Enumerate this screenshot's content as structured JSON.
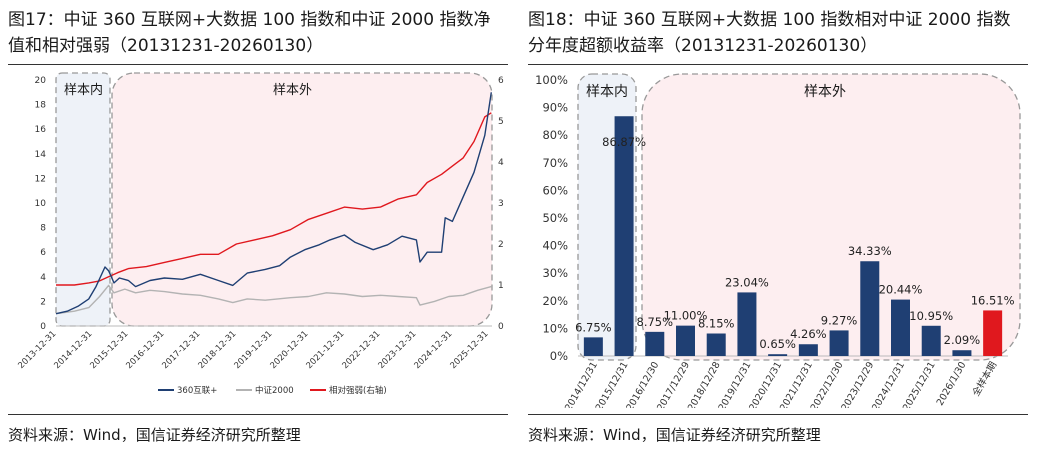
{
  "left": {
    "title_line1": "图17：中证 360 互联网+大数据 100 指数和中证 2000 指数净",
    "title_line2": "值和相对强弱（20131231-20260130）",
    "source": "资料来源：Wind，国信证券经济研究所整理",
    "region_in": "样本内",
    "region_out": "样本外",
    "colors": {
      "series1": "#1f3f73",
      "series2": "#b3b3b3",
      "series3": "#e0181e"
    },
    "chart_data": {
      "type": "line",
      "x_ticks": [
        "2013-12-31",
        "2014-12-31",
        "2015-12-31",
        "2016-12-31",
        "2017-12-31",
        "2018-12-31",
        "2019-12-31",
        "2020-12-31",
        "2021-12-31",
        "2022-12-31",
        "2023-12-31",
        "2024-12-31",
        "2025-12-31"
      ],
      "y_left_ticks": [
        "0",
        "2",
        "4",
        "6",
        "8",
        "10",
        "12",
        "14",
        "16",
        "18",
        "20"
      ],
      "y_right_ticks": [
        "0",
        "1",
        "2",
        "3",
        "4",
        "5",
        "6"
      ],
      "ylim_left": [
        0,
        20
      ],
      "ylim_right": [
        0,
        6
      ],
      "legend": [
        "360互联+",
        "中证2000",
        "相对强弱(右轴)"
      ],
      "series": [
        {
          "name": "360互联+",
          "axis": "left",
          "x": [
            2013.99,
            2014.3,
            2014.6,
            2014.9,
            2015.1,
            2015.35,
            2015.45,
            2015.6,
            2015.75,
            2016.0,
            2016.2,
            2016.6,
            2017.0,
            2017.5,
            2018.0,
            2018.5,
            2018.9,
            2019.3,
            2019.8,
            2020.2,
            2020.5,
            2020.9,
            2021.3,
            2021.6,
            2022.0,
            2022.3,
            2022.8,
            2023.2,
            2023.6,
            2024.0,
            2024.1,
            2024.3,
            2024.7,
            2024.8,
            2025.0,
            2025.3,
            2025.6,
            2025.9,
            2026.08
          ],
          "values": [
            1.0,
            1.2,
            1.6,
            2.2,
            3.2,
            4.8,
            4.5,
            3.5,
            3.9,
            3.7,
            3.2,
            3.7,
            3.9,
            3.8,
            4.2,
            3.7,
            3.3,
            4.3,
            4.6,
            4.9,
            5.6,
            6.2,
            6.6,
            7.0,
            7.4,
            6.8,
            6.2,
            6.6,
            7.3,
            7.0,
            5.2,
            6.0,
            6.0,
            8.8,
            8.5,
            10.5,
            12.5,
            15.5,
            19.0
          ]
        },
        {
          "name": "中证2000",
          "axis": "left",
          "x": [
            2013.99,
            2014.5,
            2014.9,
            2015.2,
            2015.45,
            2015.6,
            2015.9,
            2016.2,
            2016.6,
            2017.0,
            2017.5,
            2018.0,
            2018.5,
            2018.9,
            2019.3,
            2019.8,
            2020.5,
            2021.0,
            2021.5,
            2022.0,
            2022.5,
            2023.0,
            2023.5,
            2024.0,
            2024.1,
            2024.5,
            2024.9,
            2025.3,
            2025.7,
            2026.08
          ],
          "values": [
            1.0,
            1.2,
            1.5,
            2.4,
            3.3,
            2.7,
            3.0,
            2.7,
            2.9,
            2.8,
            2.6,
            2.5,
            2.2,
            1.9,
            2.2,
            2.1,
            2.3,
            2.4,
            2.7,
            2.6,
            2.4,
            2.5,
            2.4,
            2.3,
            1.7,
            2.0,
            2.4,
            2.5,
            2.9,
            3.2
          ]
        },
        {
          "name": "相对强弱(右轴)",
          "axis": "right",
          "x": [
            2013.99,
            2014.5,
            2014.9,
            2015.2,
            2015.45,
            2015.7,
            2016.0,
            2016.5,
            2017.0,
            2017.5,
            2018.0,
            2018.5,
            2019.0,
            2019.5,
            2020.0,
            2020.5,
            2021.0,
            2021.5,
            2022.0,
            2022.5,
            2023.0,
            2023.5,
            2024.0,
            2024.3,
            2024.7,
            2025.0,
            2025.3,
            2025.6,
            2025.9,
            2026.08
          ],
          "values": [
            1.0,
            1.0,
            1.05,
            1.1,
            1.2,
            1.3,
            1.4,
            1.45,
            1.55,
            1.65,
            1.75,
            1.75,
            2.0,
            2.1,
            2.2,
            2.35,
            2.6,
            2.75,
            2.9,
            2.85,
            2.9,
            3.1,
            3.2,
            3.5,
            3.7,
            3.9,
            4.1,
            4.5,
            5.1,
            5.2
          ]
        }
      ]
    }
  },
  "right": {
    "title_line1": "图18：中证 360 互联网+大数据 100 指数相对中证 2000 指数",
    "title_line2": "分年度超额收益率（20131231-20260130）",
    "source": "资料来源：Wind，国信证券经济研究所整理",
    "region_in": "样本内",
    "region_out": "样本外",
    "colors": {
      "bar": "#1f3f73",
      "bar_total": "#e0181e"
    },
    "chart_data": {
      "type": "bar",
      "categories": [
        "2014/12/31",
        "2015/12/31",
        "2016/12/30",
        "2017/12/29",
        "2018/12/28",
        "2019/12/31",
        "2020/12/31",
        "2021/12/31",
        "2022/12/30",
        "2023/12/29",
        "2024/12/31",
        "2025/12/31",
        "2026/1/30",
        "全样本期"
      ],
      "values": [
        6.75,
        86.87,
        8.75,
        11.0,
        8.15,
        23.04,
        0.65,
        4.26,
        9.27,
        34.33,
        20.44,
        10.95,
        2.09,
        16.51
      ],
      "labels": [
        "6.75%",
        "86.87%",
        "8.75%",
        "11.00%",
        "8.15%",
        "23.04%",
        "0.65%",
        "4.26%",
        "9.27%",
        "34.33%",
        "20.44%",
        "10.95%",
        "2.09%",
        "16.51%"
      ],
      "y_ticks": [
        "0%",
        "10%",
        "20%",
        "30%",
        "40%",
        "50%",
        "60%",
        "70%",
        "80%",
        "90%",
        "100%"
      ],
      "ylim": [
        0,
        100
      ]
    }
  }
}
